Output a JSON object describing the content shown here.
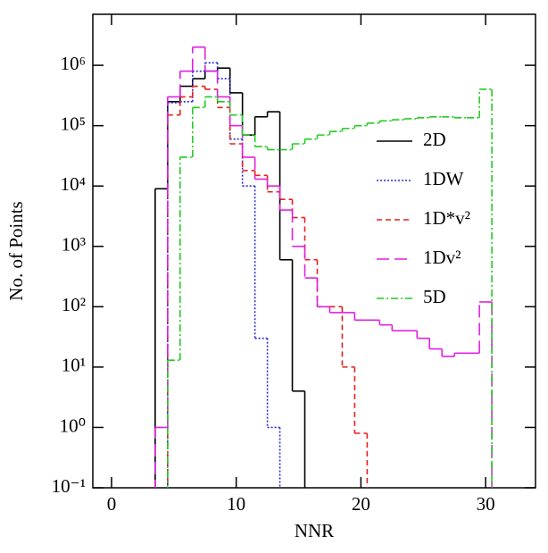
{
  "chart_data": {
    "type": "histogram",
    "log_y": true,
    "x_label": "NNR",
    "y_label": "No. of Points",
    "bins": [
      3.5,
      4.5,
      5.5,
      6.5,
      7.5,
      8.5,
      9.5,
      10.5,
      11.5,
      12.5,
      13.5,
      14.5,
      15.5,
      16.5,
      17.5,
      18.5,
      19.5,
      20.5,
      21.5,
      22.5,
      23.5,
      24.5,
      25.5,
      26.5,
      27.5,
      28.5,
      29.5,
      30.5
    ],
    "series": [
      {
        "name": "2D",
        "color": "#000000",
        "dash": "none",
        "values": [
          9000,
          250000,
          450000,
          600000,
          800000,
          900000,
          350000,
          70000,
          140000,
          170000,
          600,
          4,
          null,
          null,
          null,
          null,
          null,
          null,
          null,
          null,
          null,
          null,
          null,
          null,
          null,
          null,
          null
        ]
      },
      {
        "name": "1DW",
        "color": "#2a2ad8",
        "dash": "2,2",
        "values": [
          null,
          240000,
          250000,
          800000,
          1100000,
          600000,
          60000,
          10000,
          30,
          1,
          null,
          null,
          null,
          null,
          null,
          null,
          null,
          null,
          null,
          null,
          null,
          null,
          null,
          null,
          null,
          null,
          null
        ]
      },
      {
        "name": "1D*v²",
        "color": "#e8201c",
        "dash": "6,4",
        "values": [
          null,
          150000,
          300000,
          450000,
          400000,
          200000,
          50000,
          18000,
          15000,
          8000,
          6000,
          3000,
          600,
          100,
          100,
          10,
          0.8,
          null,
          null,
          null,
          null,
          null,
          null,
          null,
          null,
          null,
          null
        ]
      },
      {
        "name": "1Dv²",
        "color": "#e020e0",
        "dash": "14,6",
        "values": [
          1,
          300000,
          800000,
          2000000,
          800000,
          300000,
          100000,
          30000,
          13000,
          10000,
          4000,
          1000,
          300,
          100,
          80,
          80,
          60,
          60,
          50,
          40,
          40,
          30,
          20,
          15,
          17,
          17,
          120
        ]
      },
      {
        "name": "5D",
        "color": "#22cc22",
        "dash": "8,3,2,3",
        "values": [
          null,
          13,
          30000,
          200000,
          300000,
          250000,
          150000,
          70000,
          45000,
          40000,
          40000,
          50000,
          60000,
          70000,
          80000,
          90000,
          100000,
          110000,
          120000,
          125000,
          130000,
          135000,
          140000,
          140000,
          135000,
          135000,
          400000
        ]
      }
    ],
    "xlim": [
      -1.5,
      34
    ],
    "ylim": [
      0.1,
      7000000
    ],
    "xticks": [
      0,
      10,
      20,
      30
    ],
    "yticks": [
      {
        "value": 0.1,
        "label": "10⁻¹"
      },
      {
        "value": 1,
        "label": "10⁰"
      },
      {
        "value": 10,
        "label": "10¹"
      },
      {
        "value": 100,
        "label": "10²"
      },
      {
        "value": 1000,
        "label": "10³"
      },
      {
        "value": 10000,
        "label": "10⁴"
      },
      {
        "value": 100000,
        "label": "10⁵"
      },
      {
        "value": 1000000,
        "label": "10⁶"
      }
    ],
    "legend": "right"
  }
}
